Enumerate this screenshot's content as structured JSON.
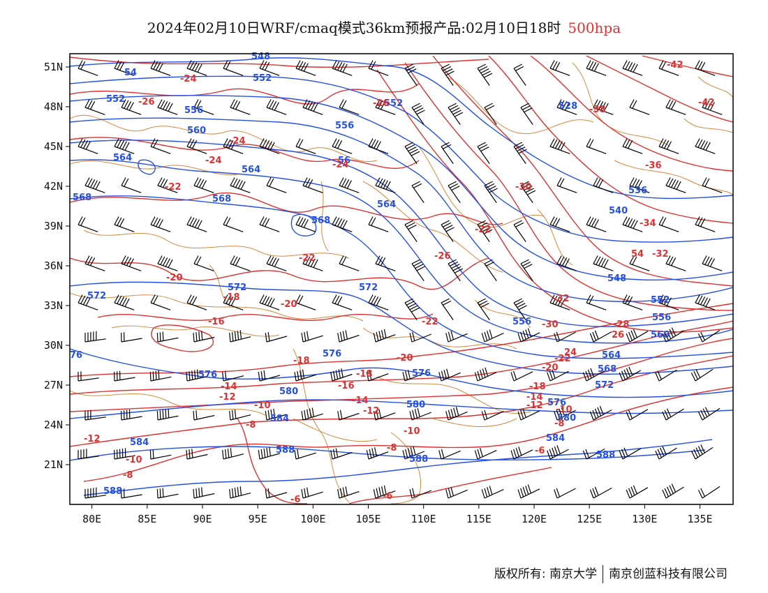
{
  "title": {
    "main": "2024年02月10日WRF/cmaq模式36km预报产品:02月10日18时",
    "level": "500hpa"
  },
  "map": {
    "lat_labels": [
      "51N",
      "48N",
      "45N",
      "42N",
      "39N",
      "36N",
      "33N",
      "30N",
      "27N",
      "24N",
      "21N"
    ],
    "lat_values": [
      51,
      48,
      45,
      42,
      39,
      36,
      33,
      30,
      27,
      24,
      21
    ],
    "lon_labels": [
      "80E",
      "85E",
      "90E",
      "95E",
      "100E",
      "105E",
      "110E",
      "115E",
      "120E",
      "125E",
      "130E",
      "135E"
    ],
    "lon_values": [
      80,
      85,
      90,
      95,
      100,
      105,
      110,
      115,
      120,
      125,
      130,
      135
    ],
    "lon_range": [
      78,
      138
    ],
    "lat_range": [
      18,
      52
    ],
    "colors": {
      "height": "#2450e6",
      "temperature": "#e03030",
      "border": "#d4893a",
      "barb": "#000000",
      "frame": "#000000"
    },
    "height_contour_labels": [
      "548",
      "552",
      "556",
      "560",
      "564",
      "568",
      "572",
      "576",
      "580",
      "584",
      "588",
      "536",
      "540",
      "528"
    ],
    "temperature_contour_labels": [
      "-42",
      "-38",
      "-36",
      "-34",
      "-32",
      "-30",
      "-28",
      "-26",
      "-24",
      "-22",
      "-20",
      "-18",
      "-16",
      "-14",
      "-12",
      "-10",
      "-8",
      "-6"
    ]
  },
  "footer": {
    "copyright": "版权所有: 南京大学",
    "company": "南京创蓝科技有限公司"
  }
}
